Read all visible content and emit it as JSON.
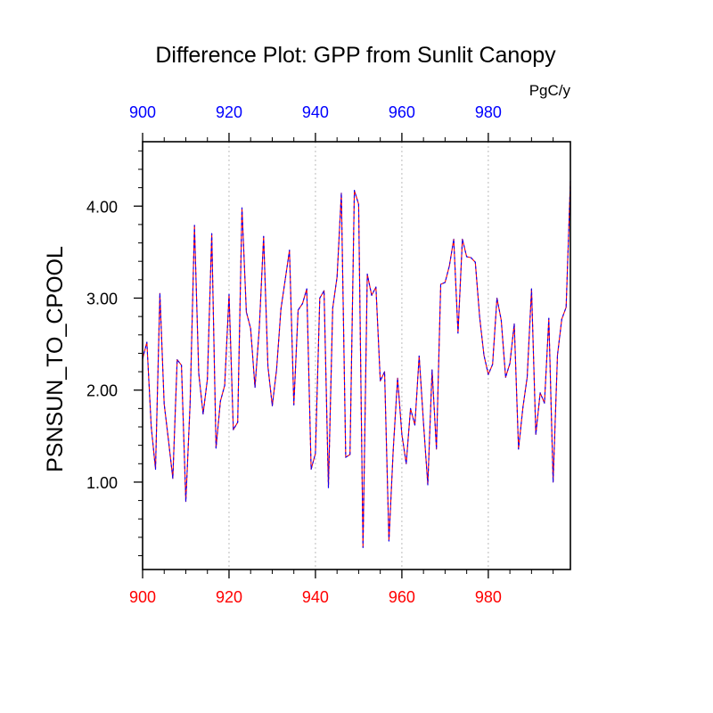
{
  "chart_data": {
    "type": "line",
    "title": "Difference Plot: GPP from Sunlit Canopy",
    "units": "PgC/y",
    "ylabel": "PSNSUN_TO_CPOOL",
    "xlabel": "",
    "xlim": [
      900,
      999
    ],
    "ylim": [
      0.05,
      4.7
    ],
    "x_ticks": [
      900,
      920,
      940,
      960,
      980
    ],
    "x_tick_labels": [
      "900",
      "920",
      "940",
      "960",
      "980"
    ],
    "y_ticks": [
      1.0,
      2.0,
      3.0,
      4.0
    ],
    "y_tick_labels": [
      "1.00",
      "2.00",
      "3.00",
      "4.00"
    ],
    "x_minor_step": 5,
    "y_minor_step": 0.2,
    "grid": "vertical dotted at major x ticks",
    "top_axis_color": "#0000ff",
    "bottom_axis_color": "#ff0000",
    "series": [
      {
        "color": "#ff0000",
        "secondary_color": "#0000ff",
        "style": "dashed",
        "x": [
          900,
          901,
          902,
          903,
          904,
          905,
          906,
          907,
          908,
          909,
          910,
          911,
          912,
          913,
          914,
          915,
          916,
          917,
          918,
          919,
          920,
          921,
          922,
          923,
          924,
          925,
          926,
          927,
          928,
          929,
          930,
          931,
          932,
          933,
          934,
          935,
          936,
          937,
          938,
          939,
          940,
          941,
          942,
          943,
          944,
          945,
          946,
          947,
          948,
          949,
          950,
          951,
          952,
          953,
          954,
          955,
          956,
          957,
          958,
          959,
          960,
          961,
          962,
          963,
          964,
          965,
          966,
          967,
          968,
          969,
          970,
          971,
          972,
          973,
          974,
          975,
          976,
          977,
          978,
          979,
          980,
          981,
          982,
          983,
          984,
          985,
          986,
          987,
          988,
          989,
          990,
          991,
          992,
          993,
          994,
          995,
          996,
          997,
          998,
          999
        ],
        "values": [
          2.34,
          2.52,
          1.6,
          1.14,
          3.05,
          1.85,
          1.45,
          1.04,
          2.33,
          2.27,
          0.79,
          1.85,
          3.79,
          2.18,
          1.74,
          2.12,
          3.7,
          1.37,
          1.88,
          2.05,
          3.04,
          1.57,
          1.65,
          3.98,
          2.85,
          2.67,
          2.03,
          2.67,
          3.67,
          2.26,
          1.83,
          2.22,
          2.88,
          3.2,
          3.52,
          1.84,
          2.87,
          2.94,
          3.1,
          1.14,
          1.31,
          3.0,
          3.08,
          0.94,
          2.89,
          3.23,
          4.14,
          1.27,
          1.3,
          4.17,
          4.02,
          0.29,
          3.26,
          3.03,
          3.12,
          2.1,
          2.2,
          0.36,
          1.35,
          2.13,
          1.52,
          1.2,
          1.8,
          1.62,
          2.37,
          1.64,
          0.97,
          2.22,
          1.36,
          3.15,
          3.17,
          3.35,
          3.64,
          2.62,
          3.64,
          3.45,
          3.44,
          3.39,
          2.79,
          2.38,
          2.17,
          2.28,
          3.0,
          2.76,
          2.14,
          2.29,
          2.72,
          1.36,
          1.81,
          2.14,
          3.1,
          1.52,
          1.97,
          1.86,
          2.78,
          1.0,
          2.38,
          2.77,
          2.9,
          4.27
        ]
      }
    ]
  }
}
